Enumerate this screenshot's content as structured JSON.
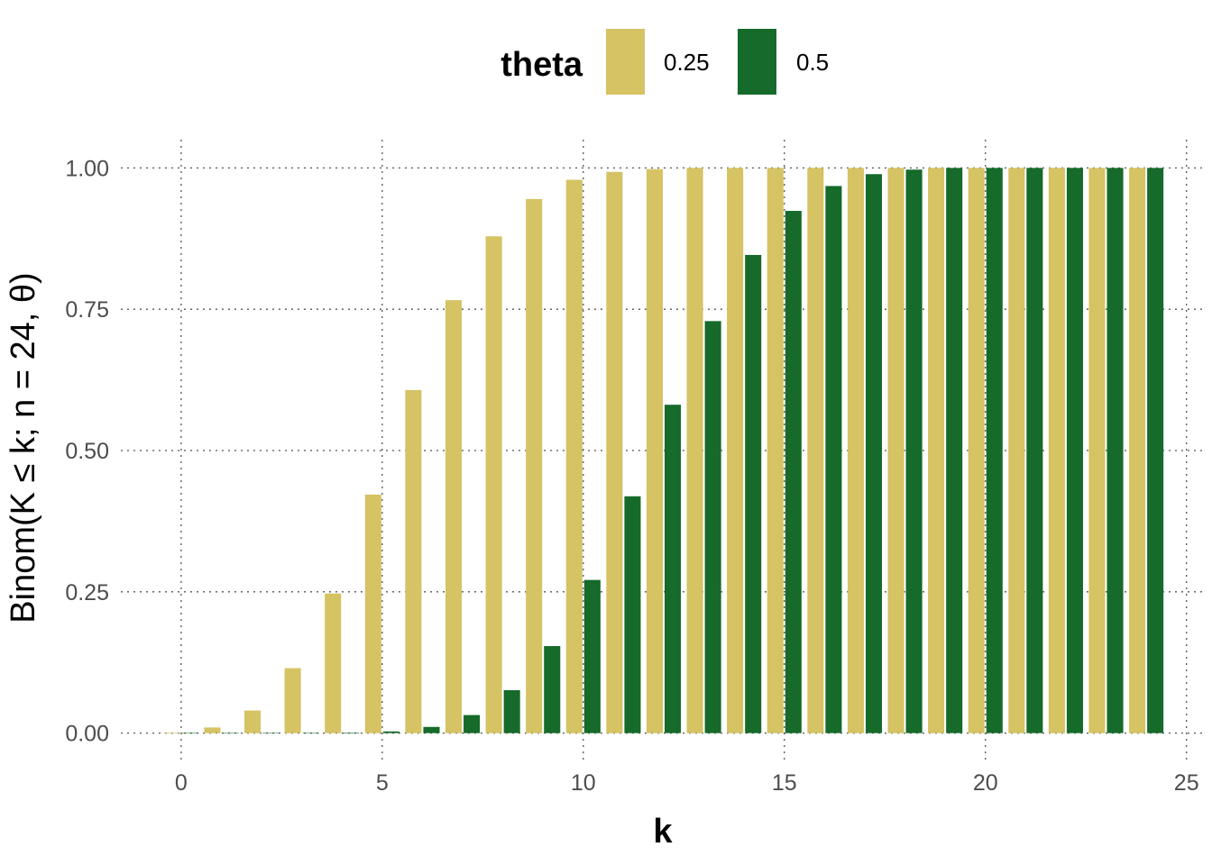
{
  "chart_data": {
    "type": "bar",
    "xlabel": "k",
    "ylabel": "Binom(K ≤ k; n = 24, θ)",
    "legend": {
      "title": "theta",
      "position": "top"
    },
    "x": [
      0,
      1,
      2,
      3,
      4,
      5,
      6,
      7,
      8,
      9,
      10,
      11,
      12,
      13,
      14,
      15,
      16,
      17,
      18,
      19,
      20,
      21,
      22,
      23,
      24
    ],
    "xlim": [
      -1.5,
      25.5
    ],
    "ylim": [
      -0.05,
      1.05
    ],
    "xticks": [
      0,
      5,
      10,
      15,
      20,
      25
    ],
    "yticks": [
      0.0,
      0.25,
      0.5,
      0.75,
      1.0
    ],
    "ytick_labels": [
      "0.00",
      "0.25",
      "0.50",
      "0.75",
      "1.00"
    ],
    "grid": true,
    "series": [
      {
        "name": "0.25",
        "color": "#d5c364",
        "values": [
          0.001,
          0.01,
          0.04,
          0.115,
          0.247,
          0.422,
          0.607,
          0.766,
          0.879,
          0.945,
          0.979,
          0.993,
          0.998,
          1.0,
          1.0,
          1.0,
          1.0,
          1.0,
          1.0,
          1.0,
          1.0,
          1.0,
          1.0,
          1.0,
          1.0
        ]
      },
      {
        "name": "0.5",
        "color": "#166a2a",
        "values": [
          0.0,
          0.0,
          0.0,
          0.0,
          0.001,
          0.003,
          0.011,
          0.032,
          0.076,
          0.154,
          0.271,
          0.419,
          0.581,
          0.729,
          0.846,
          0.924,
          0.968,
          0.989,
          0.997,
          1.0,
          1.0,
          1.0,
          1.0,
          1.0,
          1.0
        ]
      }
    ]
  }
}
